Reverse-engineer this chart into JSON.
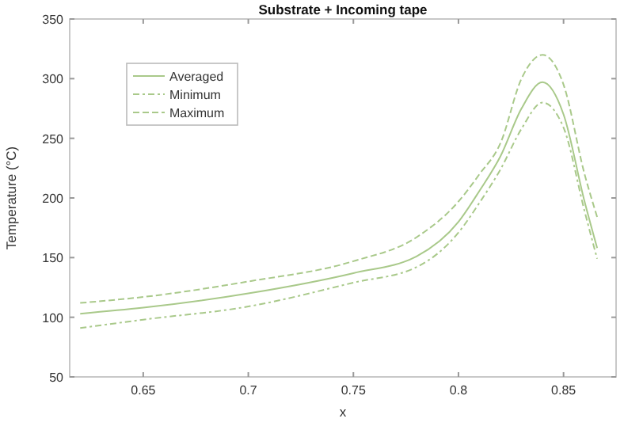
{
  "chart_data": {
    "type": "line",
    "title": "Substrate + Incoming tape",
    "xlabel": "x",
    "ylabel": "Temperature (°C)",
    "xlim": [
      0.615,
      0.875
    ],
    "xticks": [
      0.65,
      0.7,
      0.75,
      0.8,
      0.85
    ],
    "ylim": [
      50,
      350
    ],
    "yticks": [
      50,
      100,
      150,
      200,
      250,
      300,
      350
    ],
    "grid": false,
    "legend": "top left",
    "x": [
      0.62,
      0.65,
      0.7,
      0.75,
      0.78,
      0.8,
      0.81,
      0.82,
      0.83,
      0.84,
      0.85,
      0.86,
      0.866
    ],
    "series": [
      {
        "name": "Averaged",
        "color": "#a9c98a",
        "line_style": "solid",
        "values": [
          103,
          108,
          120,
          137,
          151,
          180,
          206,
          235,
          275,
          297,
          270,
          197,
          158
        ]
      },
      {
        "name": "Minimum",
        "color": "#a9c98a",
        "line_style": "dashdot",
        "values": [
          91,
          98,
          109,
          129,
          142,
          171,
          196,
          224,
          258,
          280,
          259,
          189,
          149
        ]
      },
      {
        "name": "Maximum",
        "color": "#a9c98a",
        "line_style": "dashed",
        "values": [
          112,
          117,
          130,
          147,
          167,
          197,
          220,
          246,
          300,
          320,
          295,
          220,
          184
        ]
      }
    ]
  }
}
